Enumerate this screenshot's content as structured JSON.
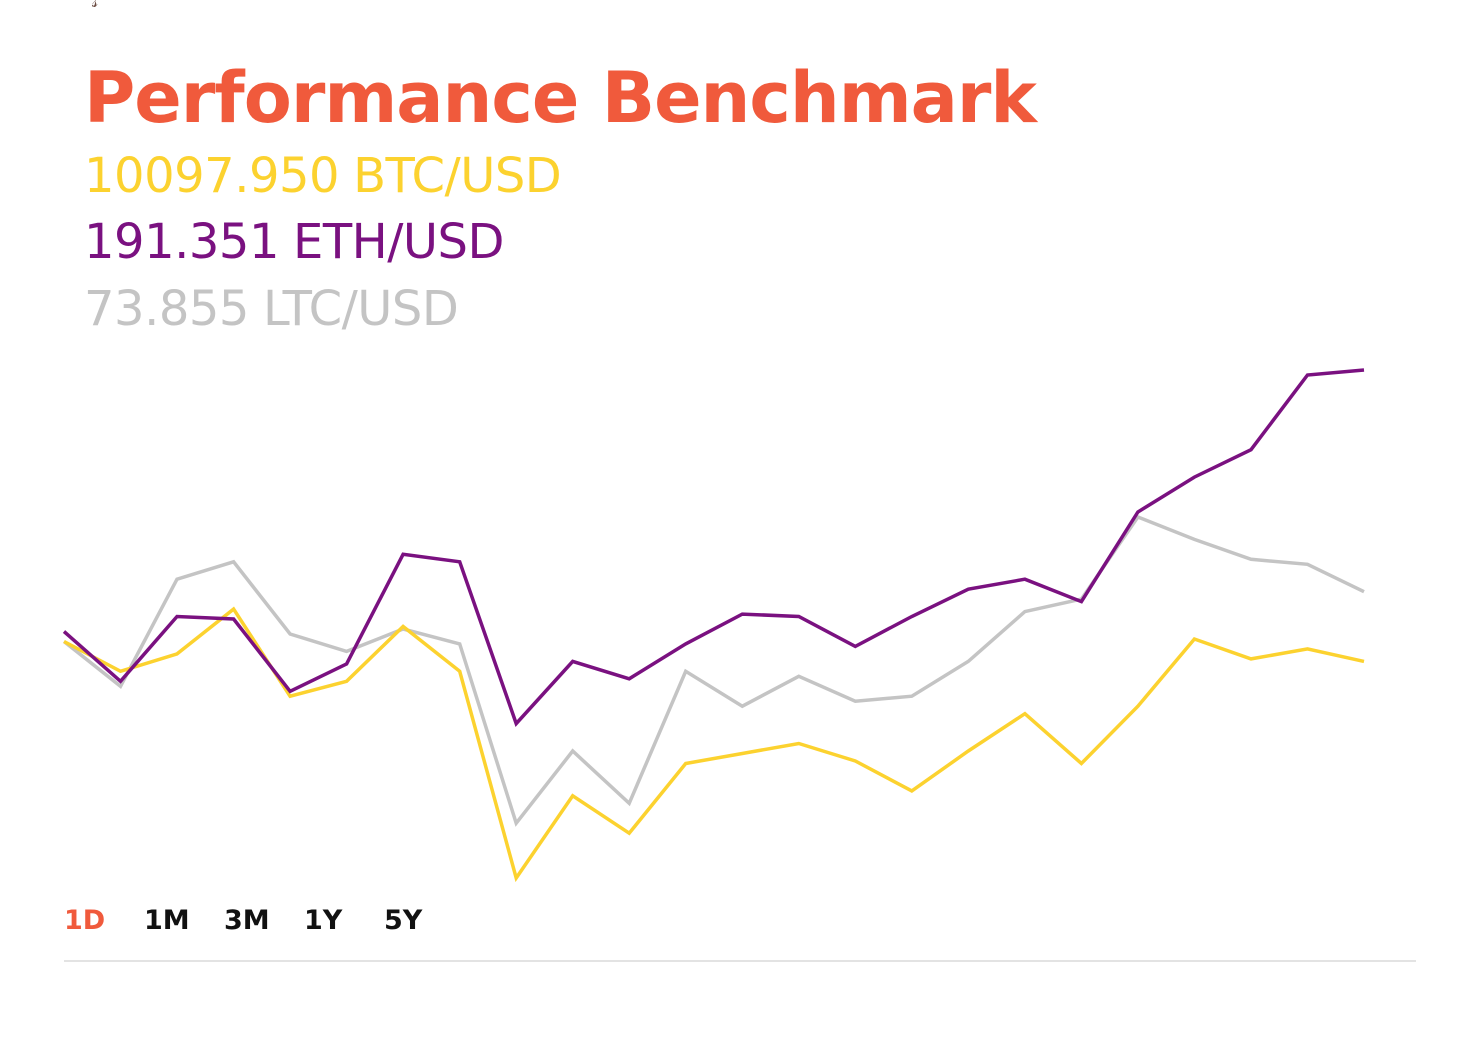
{
  "title": "Performance Benchmark",
  "colors": {
    "accent": "#f05a3c",
    "btc": "#fcd22f",
    "eth": "#7a1180",
    "ltc": "#c4c4c4",
    "range_inactive": "#111111",
    "divider": "#e3e3e3"
  },
  "tickers": [
    {
      "value": "10097.950",
      "pair": "BTC/USD"
    },
    {
      "value": "191.351",
      "pair": "ETH/USD"
    },
    {
      "value": "73.855",
      "pair": "LTC/USD"
    }
  ],
  "ranges": {
    "selected": "1D",
    "items": [
      "1D",
      "1M",
      "3M",
      "1Y",
      "5Y"
    ]
  },
  "chart_data": {
    "type": "line",
    "title": "",
    "xlabel": "",
    "ylabel": "",
    "grid": false,
    "legend": "none",
    "x": [
      0,
      1,
      2,
      3,
      4,
      5,
      6,
      7,
      8,
      9,
      10,
      11,
      12,
      13,
      14,
      15,
      16,
      17,
      18,
      19,
      20,
      21,
      22,
      23
    ],
    "ylim": [
      0,
      100
    ],
    "series": [
      {
        "key": "btc",
        "values": [
          47.5,
          41.5,
          45.0,
          54.0,
          36.5,
          39.5,
          50.5,
          41.5,
          0,
          16.5,
          9.0,
          23.0,
          25.0,
          27.0,
          23.5,
          17.5,
          25.5,
          33.0,
          23.0,
          34.5,
          48.0,
          44.0,
          46.0,
          43.5
        ]
      },
      {
        "key": "eth",
        "values": [
          49.5,
          39.5,
          52.5,
          52.0,
          37.5,
          43.0,
          65.0,
          63.5,
          31.0,
          43.5,
          40.0,
          47.0,
          53.0,
          52.5,
          46.5,
          52.5,
          58.0,
          60.0,
          55.5,
          73.5,
          80.5,
          86.0,
          101.0,
          102.0
        ]
      },
      {
        "key": "ltc",
        "values": [
          47.5,
          38.5,
          60.0,
          63.5,
          49.0,
          45.5,
          50.0,
          47.0,
          11.0,
          25.5,
          15.0,
          41.5,
          34.5,
          40.5,
          35.5,
          36.5,
          43.5,
          53.5,
          56.0,
          72.5,
          68.0,
          64.0,
          63.0,
          57.5
        ]
      }
    ]
  }
}
